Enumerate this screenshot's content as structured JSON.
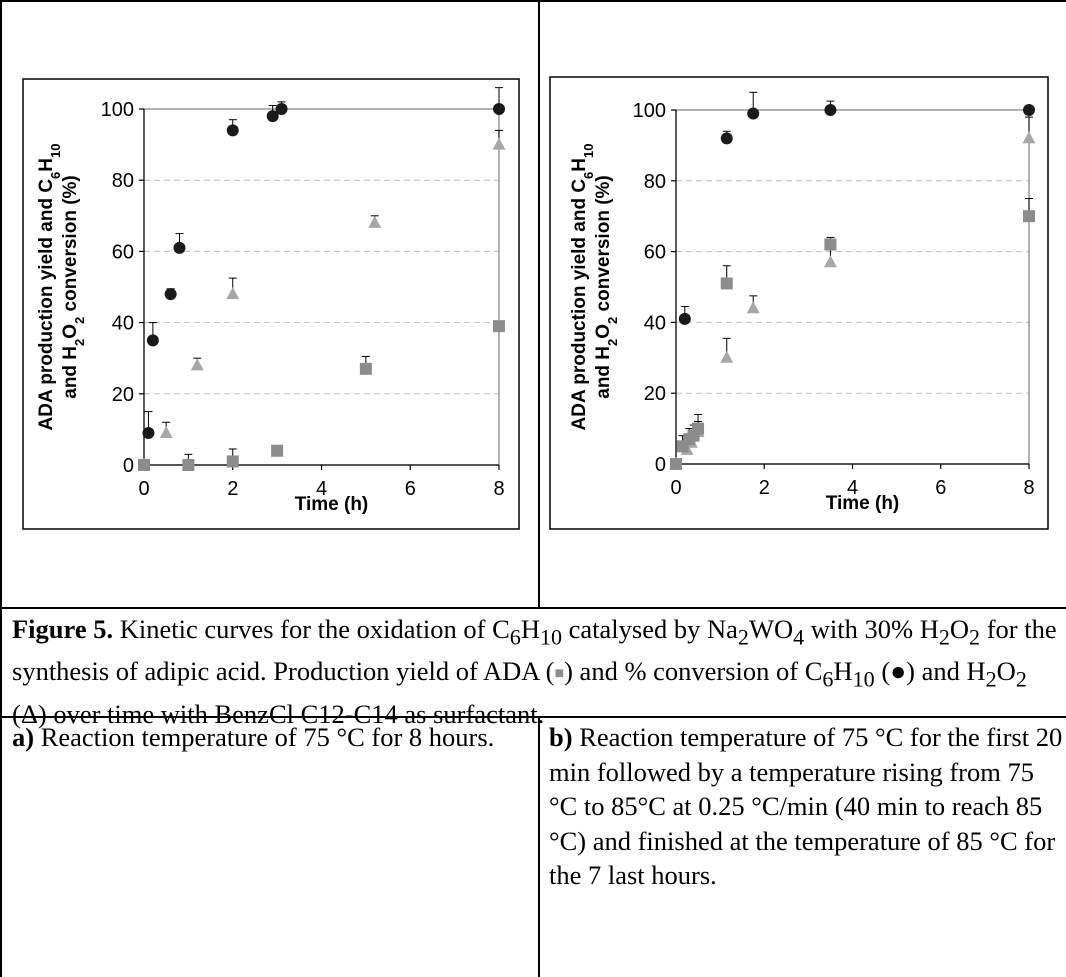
{
  "chart_data": [
    {
      "type": "scatter",
      "panel": "a",
      "xlabel": "Time (h)",
      "ylabel_line1": "ADA production yield and C",
      "ylabel_sub1": "6",
      "ylabel_mid1": "H",
      "ylabel_sub2": "10",
      "ylabel_line2": "and H",
      "ylabel_sub3": "2",
      "ylabel_mid2": "O",
      "ylabel_sub4": "2",
      "ylabel_end": " conversion (%)",
      "xlim": [
        0,
        8
      ],
      "ylim": [
        0,
        100
      ],
      "xticks": [
        "0",
        "2",
        "4",
        "6",
        "8"
      ],
      "yticks": [
        "0",
        "20",
        "40",
        "60",
        "80",
        "100"
      ],
      "grid": "horizontal dashed",
      "series": [
        {
          "marker": "circle",
          "color": "#1a1a1a",
          "x": [
            0,
            0.1,
            0.2,
            0.6,
            0.8,
            2.0,
            2.9,
            3.1,
            8.0
          ],
          "y": [
            0,
            9,
            35,
            48,
            61,
            94,
            98,
            100,
            100
          ],
          "err": [
            0,
            6,
            5,
            1.5,
            4,
            3,
            3,
            2,
            6
          ]
        },
        {
          "marker": "triangle",
          "color": "#a6a6a6",
          "x": [
            0,
            0.5,
            1.2,
            2.0,
            5.2,
            8.0
          ],
          "y": [
            0,
            9,
            28,
            48,
            68,
            90
          ],
          "err": [
            0,
            3,
            2,
            4.5,
            2,
            4
          ]
        },
        {
          "marker": "square",
          "color": "#8c8c8c",
          "x": [
            0,
            1.0,
            2.0,
            3.0,
            5.0,
            8.0
          ],
          "y": [
            0,
            0,
            1,
            4,
            27,
            39
          ],
          "err": [
            0,
            3,
            3.5,
            0,
            3.5,
            0
          ]
        }
      ]
    },
    {
      "type": "scatter",
      "panel": "b",
      "xlabel": "Time (h)",
      "ylabel_line1": "ADA production yield and C",
      "ylabel_sub1": "6",
      "ylabel_mid1": "H",
      "ylabel_sub2": "10",
      "ylabel_line2": "and H",
      "ylabel_sub3": "2",
      "ylabel_mid2": "O",
      "ylabel_sub4": "2",
      "ylabel_end": " conversion (%)",
      "xlim": [
        0,
        8
      ],
      "ylim": [
        0,
        100
      ],
      "xticks": [
        "0",
        "2",
        "4",
        "6",
        "8"
      ],
      "yticks": [
        "0",
        "20",
        "40",
        "60",
        "80",
        "100"
      ],
      "grid": "horizontal dashed",
      "series": [
        {
          "marker": "circle",
          "color": "#1a1a1a",
          "x": [
            0,
            0.2,
            1.15,
            1.75,
            3.5,
            8.0
          ],
          "y": [
            0,
            41,
            92,
            99,
            100,
            100
          ],
          "err": [
            0,
            3.5,
            2,
            6,
            2.5,
            0
          ]
        },
        {
          "marker": "triangle",
          "color": "#a6a6a6",
          "x": [
            0,
            0.25,
            0.35,
            0.5,
            1.15,
            1.75,
            3.5,
            8.0
          ],
          "y": [
            0,
            4,
            6,
            9,
            30,
            44,
            57,
            92
          ],
          "err": [
            0,
            3,
            3,
            3,
            5.5,
            3.5,
            5,
            6
          ]
        },
        {
          "marker": "square",
          "color": "#8c8c8c",
          "x": [
            0,
            0.15,
            0.3,
            0.4,
            0.5,
            1.15,
            3.5,
            8.0
          ],
          "y": [
            0,
            5,
            7,
            8,
            10,
            51,
            62,
            70
          ],
          "err": [
            0,
            3,
            3,
            3,
            4,
            5,
            2,
            5
          ]
        }
      ]
    }
  ],
  "caption": {
    "fig_label": "Figure 5.",
    "t1": " Kinetic curves for the oxidation of C",
    "s1": "6",
    "t2": "H",
    "s2": "10",
    "t3": " catalysed by Na",
    "s3": "2",
    "t4": "WO",
    "s4": "4",
    "t5": " with 30% H",
    "s5": "2",
    "t6": "O",
    "s6": "2",
    "t7": " for the synthesis of adipic acid. Production yield of ADA (",
    "sq": "■",
    "t8": ") and % conversion of C",
    "s7": "6",
    "t9": "H",
    "s8": "10",
    "t10": " (●) and H",
    "s9": "2",
    "t11": "O",
    "s10": "2",
    "t12": " (Δ) over time with BenzCl C12-C14 as surfactant."
  },
  "subcaptions": {
    "a_label": "a)",
    "a_text": " Reaction temperature of 75 °C for 8 hours.",
    "b_label": "b)",
    "b_text": " Reaction temperature of 75 °C for the first 20 min followed by a temperature rising from 75 °C to 85°C at 0.25 °C/min (40 min to reach 85 °C) and finished at the temperature of 85 °C for the 7 last hours."
  }
}
